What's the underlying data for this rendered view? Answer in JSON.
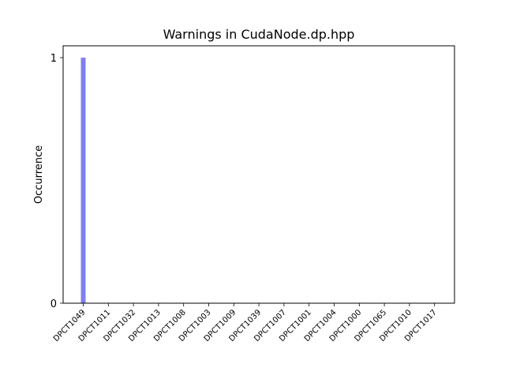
{
  "chart_data": {
    "type": "bar",
    "title": "Warnings in CudaNode.dp.hpp",
    "xlabel": "",
    "ylabel": "Occurrence",
    "categories": [
      "DPCT1049",
      "DPCT1011",
      "DPCT1032",
      "DPCT1013",
      "DPCT1008",
      "DPCT1003",
      "DPCT1009",
      "DPCT1039",
      "DPCT1007",
      "DPCT1001",
      "DPCT1004",
      "DPCT1000",
      "DPCT1065",
      "DPCT1010",
      "DPCT1017"
    ],
    "values": [
      1,
      0,
      0,
      0,
      0,
      0,
      0,
      0,
      0,
      0,
      0,
      0,
      0,
      0,
      0
    ],
    "ylim": [
      0,
      1
    ],
    "yticks": [
      0,
      1
    ],
    "grid": false,
    "bar_color": "#7f7fef"
  }
}
